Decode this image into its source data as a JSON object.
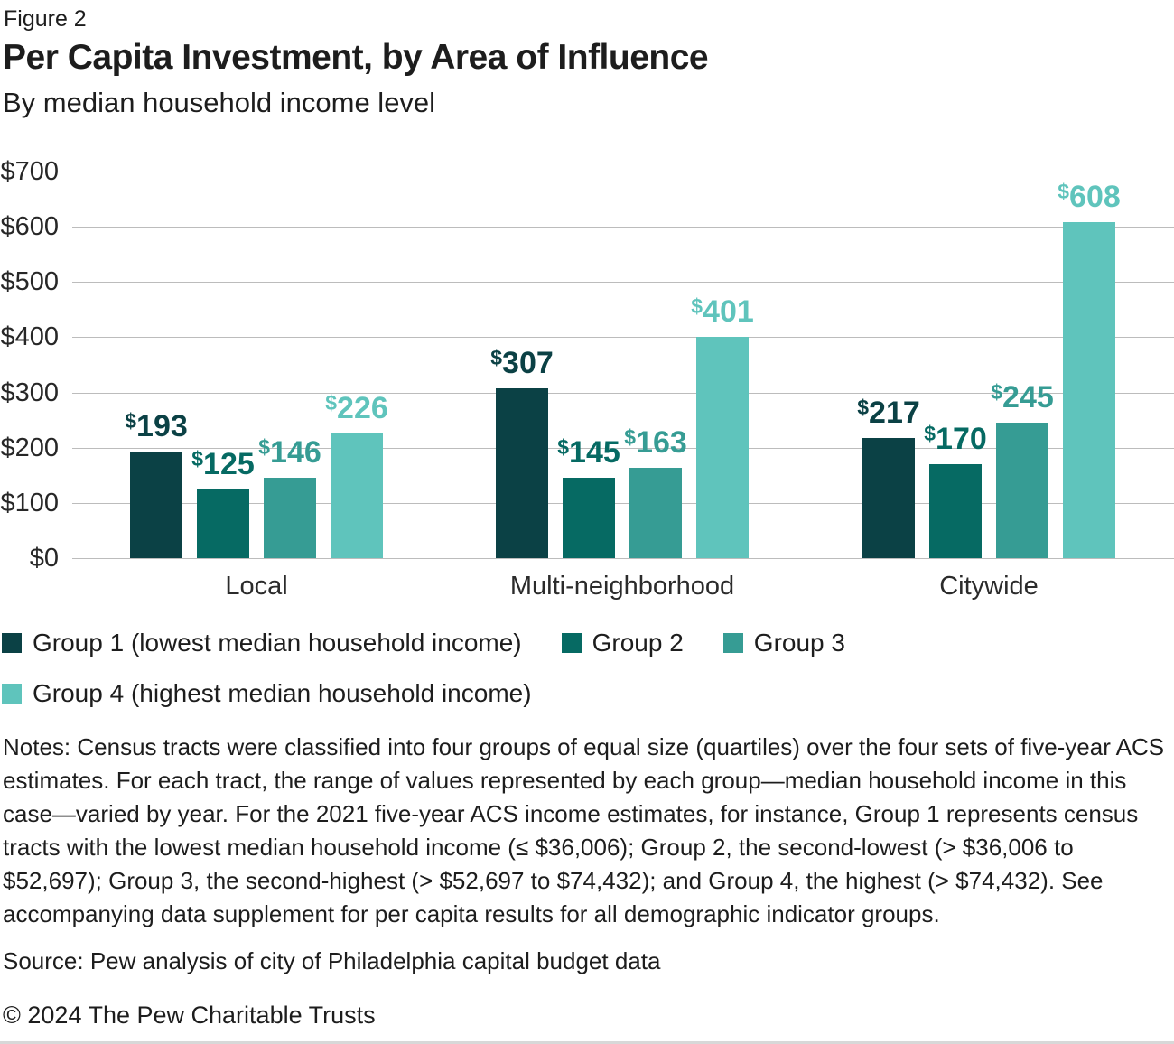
{
  "figure_label": "Figure 2",
  "title": "Per Capita Investment, by Area of Influence",
  "subtitle": "By median household income level",
  "chart_data": {
    "type": "bar",
    "categories": [
      "Local",
      "Multi-neighborhood",
      "Citywide"
    ],
    "series": [
      {
        "name": "Group 1 (lowest median household income)",
        "color": "#0b4145",
        "values": [
          193,
          307,
          217
        ]
      },
      {
        "name": "Group 2",
        "color": "#066a63",
        "values": [
          125,
          145,
          170
        ]
      },
      {
        "name": "Group 3",
        "color": "#369c94",
        "values": [
          146,
          163,
          245
        ]
      },
      {
        "name": "Group 4 (highest median household income)",
        "color": "#5fc4bc",
        "values": [
          226,
          401,
          608
        ]
      }
    ],
    "value_prefix": "$",
    "y_ticks": [
      0,
      100,
      200,
      300,
      400,
      500,
      600,
      700
    ],
    "ylim": [
      0,
      700
    ],
    "grid": true,
    "legend_position": "bottom-left",
    "legend_rows": [
      [
        0,
        1,
        2
      ],
      [
        3
      ]
    ],
    "gridline_color": "#bcbcbc"
  },
  "notes": "Notes: Census tracts were classified into four groups of equal size (quartiles) over the four sets of five-year ACS estimates. For each tract, the range of values represented by each group—median household income in this case—varied by year. For the 2021 five-year ACS income estimates, for instance, Group 1 represents census tracts with the lowest median household income (≤ $36,006); Group 2, the second-lowest (> $36,006 to $52,697); Group 3, the second-highest (> $52,697 to $74,432); and Group 4, the highest (> $74,432). See accompanying data supplement for per capita results for all demographic indicator groups.",
  "source": "Source: Pew analysis of city of Philadelphia capital budget data",
  "copyright": "© 2024 The Pew Charitable Trusts"
}
